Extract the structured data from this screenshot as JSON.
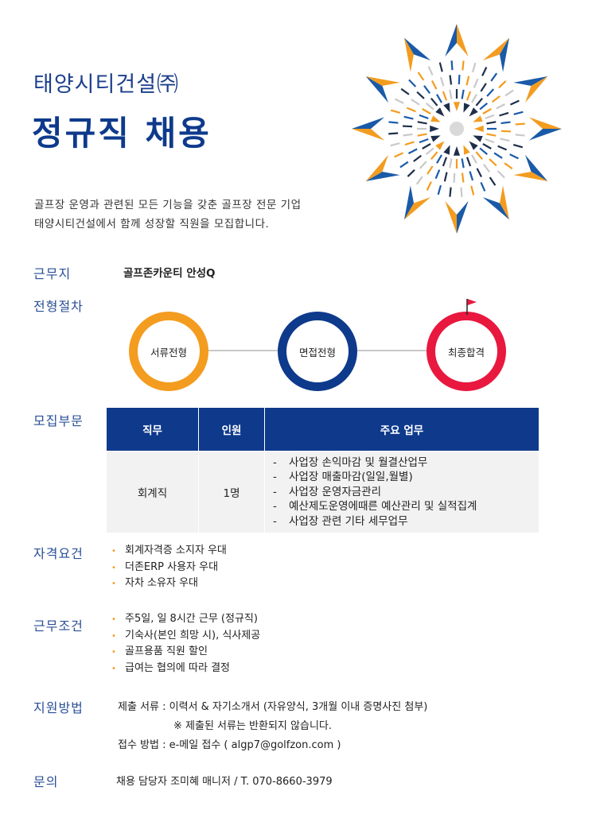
{
  "header": {
    "company": "태양시티건설㈜",
    "headline": "정규직 채용",
    "intro_line1": "골프장 운영과 관련된 모든 기능을 갖춘 골프장 전문 기업",
    "intro_line2": "태양시티건설에서 함께 성장할 직원을 모집합니다."
  },
  "workplace": {
    "label": "근무지",
    "value": "골프존카운티 안성Q"
  },
  "process": {
    "label": "전형절차",
    "steps": [
      "서류전형",
      "면접전형",
      "최종합격"
    ],
    "colors": [
      "#f39c1f",
      "#0e3a8c",
      "#e8183f"
    ]
  },
  "recruit": {
    "label": "모집부문",
    "headers": [
      "직무",
      "인원",
      "주요 업무"
    ],
    "rows": [
      {
        "job": "회계직",
        "count": "1명",
        "duties": [
          "사업장 손익마감 및 월결산업무",
          "사업장 매출마감(일일,월별)",
          "사업장 운영자금관리",
          "예산제도운영에때른 예산관리 및 실적집계",
          "사업장 관련 기타 세무업무"
        ]
      }
    ]
  },
  "qualifications": {
    "label": "자격요건",
    "items": [
      "회계자격증 소지자 우대",
      "더존ERP 사용자 우대",
      "자차 소유자 우대"
    ]
  },
  "conditions": {
    "label": "근무조건",
    "items": [
      "주5일, 일 8시간 근무 (정규직)",
      "기숙사(본인 희망 시), 식사제공",
      "골프용품 직원 할인",
      "급여는 협의에 따라 결정"
    ]
  },
  "apply": {
    "label": "지원방법",
    "line1": "제출 서류 : 이력서 & 자기소개서 (자유양식, 3개월 이내 증명사진 첨부)",
    "line2": "※ 제출된 서류는 반환되지 않습니다.",
    "line3": "접수 방법 : e-메일 접수  ( algp7@golfzon.com )"
  },
  "contact": {
    "label": "문의",
    "value": "채용 담당자 조미혜 매니저 /  T. 070-8660-3979"
  },
  "colors": {
    "navy": "#0e3a8c",
    "orange": "#f39c1f",
    "red": "#e8183f",
    "label_blue": "#2a4f96"
  }
}
